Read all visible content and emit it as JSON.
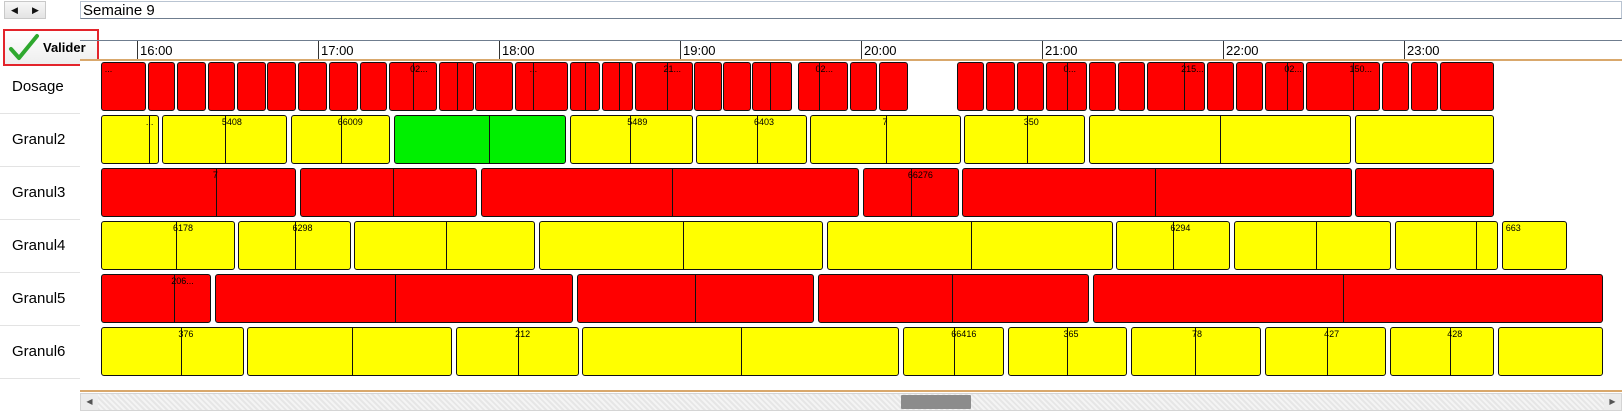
{
  "nav": {
    "prev_icon": "◀",
    "next_icon": "▶"
  },
  "week_title": "Semaine 9",
  "validate_button": {
    "label": "Valider",
    "icon": "checkmark-icon",
    "border_color": "#e3242b"
  },
  "timeline": {
    "hours": [
      "16:00",
      "17:00",
      "18:00",
      "19:00",
      "20:00",
      "21:00",
      "22:00",
      "23:00"
    ],
    "status_colors": {
      "red": "#ff0000",
      "yellow": "#ffff00",
      "green": "#00f000"
    },
    "rows": [
      {
        "name": "Dosage",
        "tasks": [
          {
            "c": "red",
            "s": -0.2,
            "e": 0.05,
            "l": "..."
          },
          {
            "c": "red",
            "s": 0.06,
            "e": 0.21
          },
          {
            "c": "red",
            "s": 0.22,
            "e": 0.38
          },
          {
            "c": "red",
            "s": 0.39,
            "e": 0.54
          },
          {
            "c": "red",
            "s": 0.55,
            "e": 0.71
          },
          {
            "c": "red",
            "s": 0.72,
            "e": 0.88
          },
          {
            "c": "red",
            "s": 0.89,
            "e": 1.05
          },
          {
            "c": "red",
            "s": 1.06,
            "e": 1.22
          },
          {
            "c": "red",
            "s": 1.23,
            "e": 1.38
          },
          {
            "c": "red",
            "s": 1.39,
            "e": 1.66,
            "l": "02...",
            "d": [
              1.52
            ]
          },
          {
            "c": "red",
            "s": 1.67,
            "e": 1.86,
            "d": [
              1.76
            ]
          },
          {
            "c": "red",
            "s": 1.87,
            "e": 2.08
          },
          {
            "c": "red",
            "s": 2.09,
            "e": 2.38,
            "l": "...",
            "d": [
              2.18
            ]
          },
          {
            "c": "red",
            "s": 2.39,
            "e": 2.56,
            "d": [
              2.47
            ]
          },
          {
            "c": "red",
            "s": 2.57,
            "e": 2.74,
            "d": [
              2.66
            ]
          },
          {
            "c": "red",
            "s": 2.75,
            "e": 3.07,
            "l": "21...",
            "d": [
              2.92
            ]
          },
          {
            "c": "red",
            "s": 3.08,
            "e": 3.23
          },
          {
            "c": "red",
            "s": 3.24,
            "e": 3.39
          },
          {
            "c": "red",
            "s": 3.4,
            "e": 3.62,
            "d": [
              3.49
            ]
          },
          {
            "c": "red",
            "s": 3.65,
            "e": 3.93,
            "l": "02...",
            "d": [
              3.76
            ]
          },
          {
            "c": "red",
            "s": 3.94,
            "e": 4.09
          },
          {
            "c": "red",
            "s": 4.1,
            "e": 4.26
          },
          {
            "c": "red",
            "s": 4.53,
            "e": 4.68
          },
          {
            "c": "red",
            "s": 4.69,
            "e": 4.85
          },
          {
            "c": "red",
            "s": 4.86,
            "e": 5.01
          },
          {
            "c": "red",
            "s": 5.02,
            "e": 5.25,
            "l": "0...",
            "d": [
              5.13
            ]
          },
          {
            "c": "red",
            "s": 5.26,
            "e": 5.41
          },
          {
            "c": "red",
            "s": 5.42,
            "e": 5.57
          },
          {
            "c": "red",
            "s": 5.58,
            "e": 5.9,
            "l": "215...",
            "d": [
              5.78
            ]
          },
          {
            "c": "red",
            "s": 5.91,
            "e": 6.06
          },
          {
            "c": "red",
            "s": 6.07,
            "e": 6.22
          },
          {
            "c": "red",
            "s": 6.23,
            "e": 6.45,
            "l": "02...",
            "d": [
              6.35
            ]
          },
          {
            "c": "red",
            "s": 6.46,
            "e": 6.87,
            "l": "150...",
            "d": [
              6.71
            ]
          },
          {
            "c": "red",
            "s": 6.88,
            "e": 7.03
          },
          {
            "c": "red",
            "s": 7.04,
            "e": 7.19
          },
          {
            "c": "red",
            "s": 7.2,
            "e": 7.5
          }
        ]
      },
      {
        "name": "Granul2",
        "tasks": [
          {
            "c": "yellow",
            "s": -0.2,
            "e": 0.12,
            "l": "...",
            "d": [
              0.06
            ]
          },
          {
            "c": "yellow",
            "s": 0.14,
            "e": 0.83,
            "l": "5408",
            "d": [
              0.48
            ]
          },
          {
            "c": "yellow",
            "s": 0.85,
            "e": 1.4,
            "l": "66009",
            "d": [
              1.12
            ]
          },
          {
            "c": "green",
            "s": 1.42,
            "e": 2.37,
            "d": [
              1.94
            ]
          },
          {
            "c": "yellow",
            "s": 2.39,
            "e": 3.07,
            "l": "5489",
            "d": [
              2.72
            ]
          },
          {
            "c": "yellow",
            "s": 3.09,
            "e": 3.7,
            "l": "6403",
            "d": [
              3.42
            ]
          },
          {
            "c": "yellow",
            "s": 3.72,
            "e": 4.55,
            "l": "7",
            "d": [
              4.13
            ]
          },
          {
            "c": "yellow",
            "s": 4.57,
            "e": 5.24,
            "l": "350",
            "d": [
              4.91
            ]
          },
          {
            "c": "yellow",
            "s": 5.26,
            "e": 6.71,
            "d": [
              5.98
            ]
          },
          {
            "c": "yellow",
            "s": 6.73,
            "e": 7.5,
            "d": [
              7.5
            ]
          }
        ]
      },
      {
        "name": "Granul3",
        "tasks": [
          {
            "c": "red",
            "s": -0.2,
            "e": 0.88,
            "l": "7",
            "d": [
              0.43
            ]
          },
          {
            "c": "red",
            "s": 0.9,
            "e": 1.88,
            "d": [
              1.41
            ]
          },
          {
            "c": "red",
            "s": 1.9,
            "e": 3.99,
            "d": [
              2.95
            ]
          },
          {
            "c": "red",
            "s": 4.01,
            "e": 4.54,
            "l": "66276",
            "d": [
              4.27
            ]
          },
          {
            "c": "red",
            "s": 4.56,
            "e": 6.71,
            "d": [
              5.62
            ]
          },
          {
            "c": "red",
            "s": 6.73,
            "e": 7.5,
            "d": [
              7.94
            ]
          }
        ]
      },
      {
        "name": "Granul4",
        "tasks": [
          {
            "c": "yellow",
            "s": -0.2,
            "e": 0.54,
            "l": "6178",
            "d": [
              0.21
            ]
          },
          {
            "c": "yellow",
            "s": 0.56,
            "e": 1.18,
            "l": "6298",
            "d": [
              0.87
            ]
          },
          {
            "c": "yellow",
            "s": 1.2,
            "e": 2.2,
            "d": [
              1.7
            ]
          },
          {
            "c": "yellow",
            "s": 2.22,
            "e": 3.79,
            "d": [
              3.01
            ]
          },
          {
            "c": "yellow",
            "s": 3.81,
            "e": 5.39,
            "d": [
              4.6
            ]
          },
          {
            "c": "yellow",
            "s": 5.41,
            "e": 6.04,
            "l": "6294",
            "d": [
              5.72
            ]
          },
          {
            "c": "yellow",
            "s": 6.06,
            "e": 6.93,
            "d": [
              6.51
            ]
          },
          {
            "c": "yellow",
            "s": 6.95,
            "e": 7.52,
            "d": [
              7.39
            ]
          },
          {
            "c": "yellow",
            "s": 7.54,
            "e": 7.9,
            "l": "663"
          }
        ]
      },
      {
        "name": "Granul5",
        "tasks": [
          {
            "c": "red",
            "s": -0.2,
            "e": 0.41,
            "l": "206...",
            "d": [
              0.2
            ]
          },
          {
            "c": "red",
            "s": 0.43,
            "e": 2.41,
            "d": [
              1.42
            ]
          },
          {
            "c": "red",
            "s": 2.43,
            "e": 3.74,
            "d": [
              3.08
            ]
          },
          {
            "c": "red",
            "s": 3.76,
            "e": 5.26,
            "d": [
              4.5
            ]
          },
          {
            "c": "red",
            "s": 5.28,
            "e": 8.1,
            "d": [
              6.66
            ]
          }
        ]
      },
      {
        "name": "Granul6",
        "tasks": [
          {
            "c": "yellow",
            "s": -0.2,
            "e": 0.59,
            "l": "376",
            "d": [
              0.24
            ]
          },
          {
            "c": "yellow",
            "s": 0.61,
            "e": 1.74,
            "d": [
              1.18
            ]
          },
          {
            "c": "yellow",
            "s": 1.76,
            "e": 2.44,
            "l": "212",
            "d": [
              2.1
            ]
          },
          {
            "c": "yellow",
            "s": 2.46,
            "e": 4.21,
            "d": [
              3.33
            ]
          },
          {
            "c": "yellow",
            "s": 4.23,
            "e": 4.79,
            "l": "66416",
            "d": [
              4.51
            ]
          },
          {
            "c": "yellow",
            "s": 4.81,
            "e": 5.47,
            "l": "365",
            "d": [
              5.13
            ]
          },
          {
            "c": "yellow",
            "s": 5.49,
            "e": 6.21,
            "l": "78",
            "d": [
              5.84
            ]
          },
          {
            "c": "yellow",
            "s": 6.23,
            "e": 6.9,
            "l": "427",
            "d": [
              6.57
            ]
          },
          {
            "c": "yellow",
            "s": 6.92,
            "e": 7.5,
            "l": "428",
            "d": [
              7.25
            ]
          },
          {
            "c": "yellow",
            "s": 7.52,
            "e": 8.1
          }
        ]
      }
    ]
  },
  "scrollbar": {
    "left_icon": "◀",
    "right_icon": "▶"
  }
}
